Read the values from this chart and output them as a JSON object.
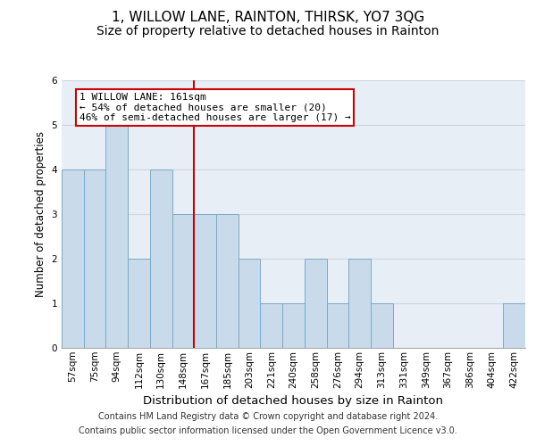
{
  "title": "1, WILLOW LANE, RAINTON, THIRSK, YO7 3QG",
  "subtitle": "Size of property relative to detached houses in Rainton",
  "xlabel": "Distribution of detached houses by size in Rainton",
  "ylabel": "Number of detached properties",
  "categories": [
    "57sqm",
    "75sqm",
    "94sqm",
    "112sqm",
    "130sqm",
    "148sqm",
    "167sqm",
    "185sqm",
    "203sqm",
    "221sqm",
    "240sqm",
    "258sqm",
    "276sqm",
    "294sqm",
    "313sqm",
    "331sqm",
    "349sqm",
    "367sqm",
    "386sqm",
    "404sqm",
    "422sqm"
  ],
  "values": [
    4,
    4,
    5,
    2,
    4,
    3,
    3,
    3,
    2,
    1,
    1,
    2,
    1,
    2,
    1,
    0,
    0,
    0,
    0,
    0,
    1
  ],
  "bar_color": "#c9daea",
  "bar_edge_color": "#7aaac8",
  "vline_color": "#cc0000",
  "vline_index": 6,
  "annotation_text": "1 WILLOW LANE: 161sqm\n← 54% of detached houses are smaller (20)\n46% of semi-detached houses are larger (17) →",
  "annotation_box_color": "#ffffff",
  "annotation_box_edge": "#cc0000",
  "ylim": [
    0,
    6
  ],
  "yticks": [
    0,
    1,
    2,
    3,
    4,
    5,
    6
  ],
  "grid_color": "#ccd5e0",
  "bg_color": "#e8eef5",
  "footer_line1": "Contains HM Land Registry data © Crown copyright and database right 2024.",
  "footer_line2": "Contains public sector information licensed under the Open Government Licence v3.0.",
  "title_fontsize": 11,
  "subtitle_fontsize": 10,
  "xlabel_fontsize": 9.5,
  "ylabel_fontsize": 8.5,
  "tick_fontsize": 7.5,
  "annot_fontsize": 8,
  "footer_fontsize": 7
}
